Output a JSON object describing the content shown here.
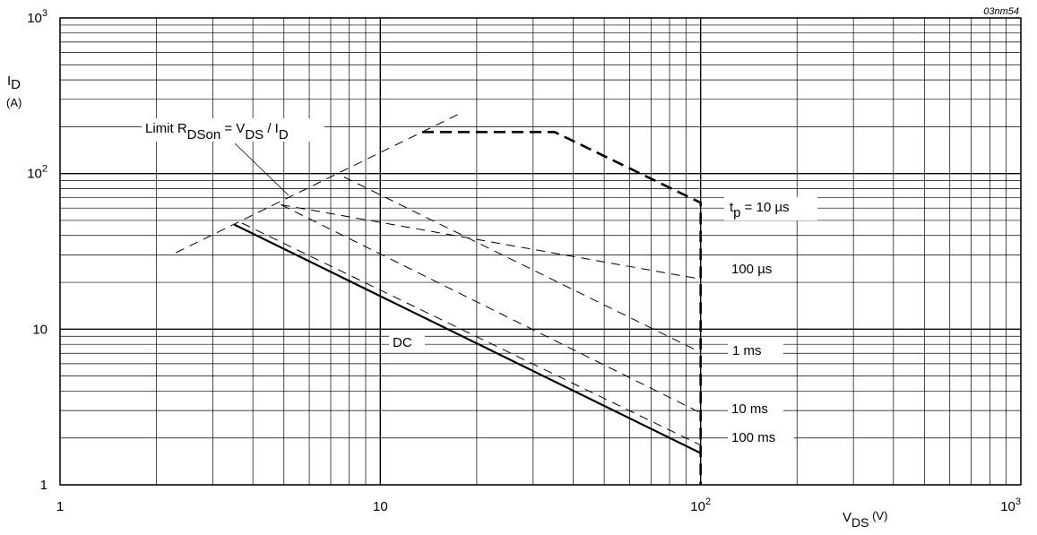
{
  "chart_data": {
    "type": "line",
    "figure_id": "03nm54",
    "x_scale": "log",
    "y_scale": "log",
    "xlim": [
      1,
      1000
    ],
    "ylim": [
      1,
      1000
    ],
    "grid": true,
    "x_ticks": [
      {
        "value": 1,
        "base": "1",
        "exp": ""
      },
      {
        "value": 10,
        "base": "10",
        "exp": ""
      },
      {
        "value": 100,
        "base": "10",
        "exp": "2"
      },
      {
        "value": 1000,
        "base": "10",
        "exp": "3"
      }
    ],
    "y_ticks": [
      {
        "value": 1,
        "base": "1",
        "exp": ""
      },
      {
        "value": 10,
        "base": "10",
        "exp": ""
      },
      {
        "value": 100,
        "base": "10",
        "exp": "2"
      },
      {
        "value": 1000,
        "base": "10",
        "exp": "3"
      }
    ],
    "xlabel": {
      "main": "V",
      "sub": "DS",
      "unit": " (V)"
    },
    "ylabel": {
      "main": "I",
      "sub": "D",
      "unit": "(A)"
    },
    "limit_label": {
      "p1": "Limit R",
      "s1": "DSon",
      "p2": " = V",
      "s2": "DS",
      "p3": " / I",
      "s3": "D"
    },
    "tp_label": {
      "p1": "t",
      "s1": "p",
      "p2": " = 10 µs"
    },
    "series": [
      {
        "label": "Limit RDSon = VDS / ID",
        "style": "dash-thin",
        "points": [
          [
            2.3,
            31
          ],
          [
            17.5,
            240
          ]
        ]
      },
      {
        "label": "tp = 10 µs",
        "style": "dash-bold",
        "points": [
          [
            13.5,
            185
          ],
          [
            35,
            185
          ],
          [
            100,
            65
          ],
          [
            100,
            1
          ]
        ]
      },
      {
        "label": "100 µs",
        "style": "dash-thin",
        "points": [
          [
            4.9,
            63
          ],
          [
            100,
            21
          ]
        ]
      },
      {
        "label": "1 ms",
        "style": "dash-thin",
        "points": [
          [
            7.7,
            95
          ],
          [
            100,
            7.1
          ]
        ]
      },
      {
        "label": "10 ms",
        "style": "dash-thin",
        "points": [
          [
            4.9,
            63
          ],
          [
            100,
            2.9
          ]
        ]
      },
      {
        "label": "100 ms",
        "style": "dash-thin",
        "points": [
          [
            3.7,
            48
          ],
          [
            100,
            1.8
          ]
        ]
      },
      {
        "label": "DC",
        "style": "solid",
        "points": [
          [
            3.5,
            47
          ],
          [
            100,
            1.6
          ]
        ]
      }
    ],
    "labels": {
      "t100us": "100 µs",
      "t1ms": "1 ms",
      "t10ms": "10 ms",
      "t100ms": "100 ms",
      "dc": "DC"
    }
  }
}
